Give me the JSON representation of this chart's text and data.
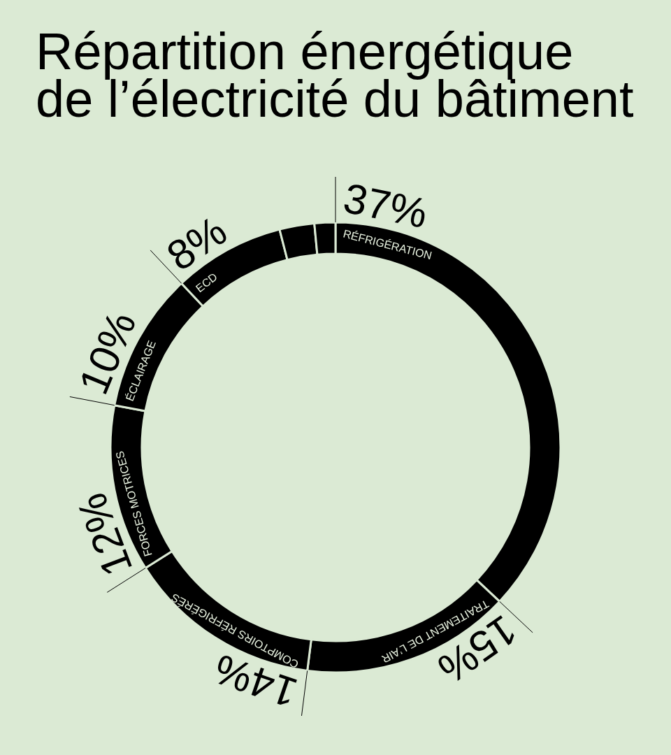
{
  "chart_data": {
    "type": "donut",
    "title": "Répartition énergétique de l’électricité du bâtiment",
    "categories": [
      "RÉFRIGÉRATION",
      "TRAITEMENT DE L’AIR",
      "COMPTOIRS RÉFRIGÉRÉS",
      "FORCES MOTRICES",
      "ÉCLAIRAGE",
      "ECD",
      null,
      null
    ],
    "values": [
      37,
      15,
      14,
      12,
      10,
      8,
      2.5,
      1.5
    ],
    "colors": [
      "#000000",
      "#000000",
      "#000000",
      "#000000",
      "#000000",
      "#000000",
      "#000000",
      "#000000"
    ],
    "value_labels": [
      "37%",
      "15%",
      "14%",
      "12%",
      "10%",
      "8%",
      null,
      null
    ]
  }
}
